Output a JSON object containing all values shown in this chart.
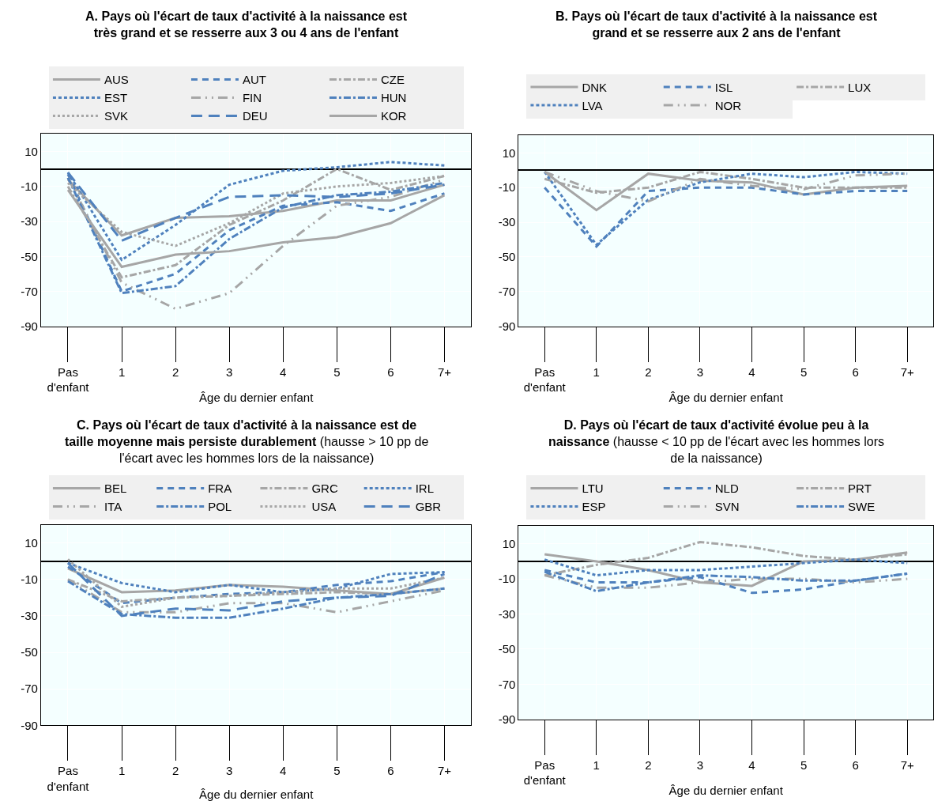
{
  "chart_data": [
    {
      "type": "line",
      "title": "A. Pays où l'écart de taux d'activité à la naissance est très grand et se resserre aux 3 ou 4 ans de l'enfant",
      "xlabel": "Âge du dernier enfant",
      "categories": [
        "Pas d'enfant",
        "1",
        "2",
        "3",
        "4",
        "5",
        "6",
        "7+"
      ],
      "ylim": [
        -90,
        20
      ],
      "yticks": [
        10,
        -10,
        -30,
        -50,
        -70,
        -90
      ],
      "grid": true,
      "legend": "top",
      "series": [
        {
          "name": "AUS",
          "color": "#a6a6a6",
          "line_style": "solid",
          "values": [
            -6,
            -38,
            -28,
            -27,
            -24,
            -18,
            -18,
            -9
          ]
        },
        {
          "name": "AUT",
          "color": "#4f81bd",
          "line_style": "dashed",
          "values": [
            -3,
            -70,
            -60,
            -35,
            -21,
            -19,
            -24,
            -14
          ]
        },
        {
          "name": "CZE",
          "color": "#a6a6a6",
          "line_style": "dashdot",
          "values": [
            -10,
            -62,
            -55,
            -32,
            -18,
            0,
            -12,
            -4
          ]
        },
        {
          "name": "EST",
          "color": "#4f81bd",
          "line_style": "shortdash",
          "values": [
            -2,
            -52,
            -32,
            -9,
            -1,
            1,
            4,
            2
          ]
        },
        {
          "name": "FIN",
          "color": "#a6a6a6",
          "line_style": "dashdotdot",
          "values": [
            -5,
            -65,
            -80,
            -71,
            -44,
            -21,
            -16,
            -6
          ]
        },
        {
          "name": "HUN",
          "color": "#4f81bd",
          "line_style": "dashdot",
          "values": [
            -5,
            -71,
            -67,
            -40,
            -22,
            -15,
            -13,
            -8
          ]
        },
        {
          "name": "SVK",
          "color": "#a6a6a6",
          "line_style": "dotted",
          "values": [
            -8,
            -36,
            -44,
            -31,
            -14,
            -10,
            -8,
            -4
          ]
        },
        {
          "name": "DEU",
          "color": "#4f81bd",
          "line_style": "longdash",
          "values": [
            -2,
            -41,
            -28,
            -16,
            -15,
            -16,
            -14,
            -9
          ]
        },
        {
          "name": "KOR",
          "color": "#a6a6a6",
          "line_style": "solid",
          "values": [
            -12,
            -56,
            -49,
            -47,
            -42,
            -39,
            -31,
            -15
          ]
        }
      ]
    },
    {
      "type": "line",
      "title": "B. Pays où l'écart de taux d'activité à la naissance est grand et se resserre aux 2 ans de l'enfant",
      "xlabel": "Âge du dernier enfant",
      "categories": [
        "Pas d'enfant",
        "1",
        "2",
        "3",
        "4",
        "5",
        "6",
        "7+"
      ],
      "ylim": [
        -90,
        20
      ],
      "yticks": [
        10,
        -10,
        -30,
        -50,
        -70,
        -90
      ],
      "grid": true,
      "legend": "top",
      "series": [
        {
          "name": "DNK",
          "color": "#a6a6a6",
          "line_style": "solid",
          "values": [
            -1,
            -23,
            -2,
            -6,
            -7,
            -14,
            -10,
            -9
          ]
        },
        {
          "name": "ISL",
          "color": "#4f81bd",
          "line_style": "dashed",
          "values": [
            -10,
            -44,
            -12,
            -10,
            -10,
            -14,
            -12,
            -12
          ]
        },
        {
          "name": "LUX",
          "color": "#a6a6a6",
          "line_style": "dashdot",
          "values": [
            -5,
            -13,
            -10,
            -1,
            -5,
            -10,
            -10,
            -10
          ]
        },
        {
          "name": "LVA",
          "color": "#4f81bd",
          "line_style": "shortdash",
          "values": [
            -1,
            -43,
            -17,
            -7,
            -2,
            -4,
            -1,
            -2
          ]
        },
        {
          "name": "NOR",
          "color": "#a6a6a6",
          "line_style": "dashdotdot",
          "values": [
            -1,
            -12,
            -18,
            -5,
            -9,
            -11,
            -3,
            -2
          ]
        }
      ]
    },
    {
      "type": "line",
      "title": "C. Pays où l'écart de taux d'activité à la naissance est de taille moyenne mais persiste durablement",
      "subtitle": "(hausse > 10 pp de l'écart avec les hommes lors de la naissance)",
      "xlabel": "Âge du dernier enfant",
      "categories": [
        "Pas d'enfant",
        "1",
        "2",
        "3",
        "4",
        "5",
        "6",
        "7+"
      ],
      "ylim": [
        -90,
        20
      ],
      "yticks": [
        10,
        -10,
        -30,
        -50,
        -70,
        -90
      ],
      "grid": true,
      "legend": "top",
      "series": [
        {
          "name": "BEL",
          "color": "#a6a6a6",
          "line_style": "solid",
          "values": [
            -4,
            -17,
            -16,
            -13,
            -14,
            -16,
            -18,
            -9
          ]
        },
        {
          "name": "FRA",
          "color": "#4f81bd",
          "line_style": "dashed",
          "values": [
            -3,
            -23,
            -20,
            -18,
            -17,
            -13,
            -11,
            -6
          ]
        },
        {
          "name": "GRC",
          "color": "#a6a6a6",
          "line_style": "dashdot",
          "values": [
            -10,
            -22,
            -20,
            -19,
            -18,
            -17,
            -18,
            -15
          ]
        },
        {
          "name": "IRL",
          "color": "#4f81bd",
          "line_style": "shortdash",
          "values": [
            -1,
            -12,
            -17,
            -13,
            -17,
            -15,
            -7,
            -6
          ]
        },
        {
          "name": "ITA",
          "color": "#a6a6a6",
          "line_style": "dashdotdot",
          "values": [
            -10,
            -28,
            -28,
            -23,
            -23,
            -28,
            -22,
            -16
          ]
        },
        {
          "name": "POL",
          "color": "#4f81bd",
          "line_style": "dashdot",
          "values": [
            -11,
            -29,
            -31,
            -31,
            -26,
            -20,
            -18,
            -15
          ]
        },
        {
          "name": "USA",
          "color": "#a6a6a6",
          "line_style": "dotted",
          "values": [
            1,
            -25,
            -20,
            -19,
            -17,
            -15,
            -15,
            -9
          ]
        },
        {
          "name": "GBR",
          "color": "#4f81bd",
          "line_style": "longdash",
          "values": [
            -1,
            -30,
            -26,
            -27,
            -22,
            -20,
            -19,
            -7
          ]
        }
      ]
    },
    {
      "type": "line",
      "title": "D. Pays où l'écart de taux d'activité évolue peu à la naissance",
      "subtitle": "(hausse < 10 pp de l'écart avec les hommes lors de la naissance)",
      "xlabel": "Âge du dernier enfant",
      "categories": [
        "Pas d'enfant",
        "1",
        "2",
        "3",
        "4",
        "5",
        "6",
        "7+"
      ],
      "ylim": [
        -90,
        20
      ],
      "yticks": [
        10,
        -10,
        -30,
        -50,
        -70,
        -90
      ],
      "grid": true,
      "legend": "top",
      "series": [
        {
          "name": "LTU",
          "color": "#a6a6a6",
          "line_style": "solid",
          "values": [
            4,
            0,
            -5,
            -12,
            -14,
            0,
            1,
            5
          ]
        },
        {
          "name": "NLD",
          "color": "#4f81bd",
          "line_style": "dashed",
          "values": [
            -5,
            -12,
            -12,
            -9,
            -18,
            -16,
            -11,
            -7
          ]
        },
        {
          "name": "PRT",
          "color": "#a6a6a6",
          "line_style": "dashdot",
          "values": [
            -8,
            -2,
            2,
            11,
            8,
            3,
            1,
            4
          ]
        },
        {
          "name": "ESP",
          "color": "#4f81bd",
          "line_style": "shortdash",
          "values": [
            1,
            -8,
            -5,
            -5,
            -3,
            -1,
            1,
            -1
          ]
        },
        {
          "name": "SVN",
          "color": "#a6a6a6",
          "line_style": "dashdotdot",
          "values": [
            -8,
            -15,
            -15,
            -12,
            -10,
            -10,
            -12,
            -10
          ]
        },
        {
          "name": "SWE",
          "color": "#4f81bd",
          "line_style": "dashdot",
          "values": [
            -6,
            -17,
            -12,
            -8,
            -9,
            -11,
            -11,
            -7
          ]
        }
      ]
    }
  ]
}
